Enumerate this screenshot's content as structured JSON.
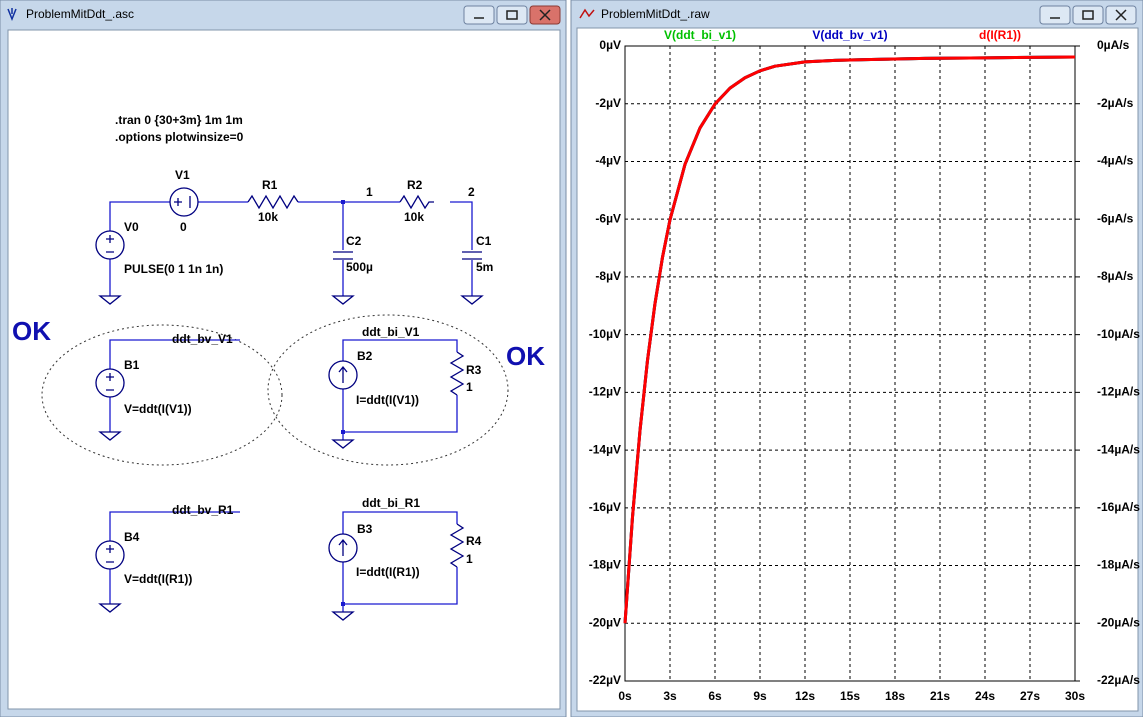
{
  "windows": [
    {
      "title": "ProblemMitDdt_.asc"
    },
    {
      "title": "ProblemMitDdt_.raw"
    }
  ],
  "schematic": {
    "directives": [
      ".tran 0 {30+3m} 1m 1m",
      ".options plotwinsize=0"
    ],
    "labels": [
      "V1",
      "0",
      "R1",
      "10k",
      "1",
      "R2",
      "10k",
      "2",
      "V0",
      "PULSE(0 1 1n 1n)",
      "C2",
      "500µ",
      "C1",
      "5m",
      "OK",
      "OK",
      "ddt_bv_V1",
      "B1",
      "V=ddt(I(V1))",
      "ddt_bi_V1",
      "B2",
      "I=ddt(I(V1))",
      "R3",
      "1",
      "ddt_bv_R1",
      "B4",
      "V=ddt(I(R1))",
      "ddt_bi_R1",
      "B3",
      "I=ddt(I(R1))",
      "R4",
      "1"
    ]
  },
  "chart_data": {
    "type": "line",
    "x": [
      0,
      0.5,
      1,
      1.5,
      2,
      2.5,
      3,
      4,
      5,
      6,
      7,
      8,
      9,
      10,
      12,
      14,
      16,
      18,
      20,
      22,
      24,
      26,
      28,
      30
    ],
    "series": [
      {
        "name": "V(ddt_bi_v1)",
        "color": "#00c000",
        "values": [
          -20,
          -16.32,
          -13.32,
          -10.89,
          -8.92,
          -7.32,
          -6.02,
          -4.1,
          -2.84,
          -2.01,
          -1.46,
          -1.1,
          -0.86,
          -0.7,
          -0.55,
          -0.5,
          -0.47,
          -0.45,
          -0.43,
          -0.42,
          -0.41,
          -0.4,
          -0.39,
          -0.38
        ]
      },
      {
        "name": "V(ddt_bv_v1)",
        "color": "#0000c0",
        "values": [
          -20,
          -16.32,
          -13.32,
          -10.89,
          -8.92,
          -7.32,
          -6.02,
          -4.1,
          -2.84,
          -2.01,
          -1.46,
          -1.1,
          -0.86,
          -0.7,
          -0.55,
          -0.5,
          -0.47,
          -0.45,
          -0.43,
          -0.42,
          -0.41,
          -0.4,
          -0.39,
          -0.38
        ]
      },
      {
        "name": "d(I(R1))",
        "color": "#ff0000",
        "axis": "y2",
        "values": [
          -20,
          -16.32,
          -13.32,
          -10.89,
          -8.92,
          -7.32,
          -6.02,
          -4.1,
          -2.84,
          -2.01,
          -1.46,
          -1.1,
          -0.86,
          -0.7,
          -0.55,
          -0.5,
          -0.47,
          -0.45,
          -0.43,
          -0.42,
          -0.41,
          -0.4,
          -0.39,
          -0.38
        ]
      }
    ],
    "xlim": [
      0,
      30
    ],
    "xticks": [
      {
        "value": 0,
        "label": "0s"
      },
      {
        "value": 3,
        "label": "3s"
      },
      {
        "value": 6,
        "label": "6s"
      },
      {
        "value": 9,
        "label": "9s"
      },
      {
        "value": 12,
        "label": "12s"
      },
      {
        "value": 15,
        "label": "15s"
      },
      {
        "value": 18,
        "label": "18s"
      },
      {
        "value": 21,
        "label": "21s"
      },
      {
        "value": 24,
        "label": "24s"
      },
      {
        "value": 27,
        "label": "27s"
      },
      {
        "value": 30,
        "label": "30s"
      }
    ],
    "ylim": [
      -22,
      0
    ],
    "yticks": [
      {
        "value": 0,
        "label": "0µV"
      },
      {
        "value": -2,
        "label": "-2µV"
      },
      {
        "value": -4,
        "label": "-4µV"
      },
      {
        "value": -6,
        "label": "-6µV"
      },
      {
        "value": -8,
        "label": "-8µV"
      },
      {
        "value": -10,
        "label": "-10µV"
      },
      {
        "value": -12,
        "label": "-12µV"
      },
      {
        "value": -14,
        "label": "-14µV"
      },
      {
        "value": -16,
        "label": "-16µV"
      },
      {
        "value": -18,
        "label": "-18µV"
      },
      {
        "value": -20,
        "label": "-20µV"
      },
      {
        "value": -22,
        "label": "-22µV"
      }
    ],
    "y2lim": [
      -22,
      0
    ],
    "y2ticks": [
      {
        "value": 0,
        "label": "0µA/s"
      },
      {
        "value": -2,
        "label": "-2µA/s"
      },
      {
        "value": -4,
        "label": "-4µA/s"
      },
      {
        "value": -6,
        "label": "-6µA/s"
      },
      {
        "value": -8,
        "label": "-8µA/s"
      },
      {
        "value": -10,
        "label": "-10µA/s"
      },
      {
        "value": -12,
        "label": "-12µA/s"
      },
      {
        "value": -14,
        "label": "-14µA/s"
      },
      {
        "value": -16,
        "label": "-16µA/s"
      },
      {
        "value": -18,
        "label": "-18µA/s"
      },
      {
        "value": -20,
        "label": "-20µA/s"
      },
      {
        "value": -22,
        "label": "-22µA/s"
      }
    ],
    "grid": true
  }
}
